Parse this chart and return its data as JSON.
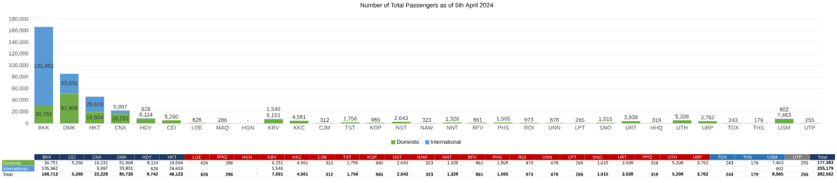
{
  "chart_data": [
    {
      "type": "bar",
      "title": "Number of Total Passengers as of 5th April 2024",
      "stacked": true,
      "grid": "y",
      "legend": "bottom",
      "categories": [
        "BKK",
        "DMK",
        "HKT",
        "CNX",
        "HDY",
        "CEI",
        "LOE",
        "MAQ",
        "HGN",
        "KBV",
        "KKC",
        "CJM",
        "TST",
        "KOP",
        "NST",
        "NAW",
        "NNT",
        "BFV",
        "PHS",
        "ROI",
        "UNN",
        "LPT",
        "SNO",
        "URT",
        "HHQ",
        "UTH",
        "UBP",
        "TDX",
        "THS",
        "USM",
        "UTP"
      ],
      "ylim": [
        0,
        180000
      ],
      "yticks": [
        {
          "value": 0,
          "label": "0"
        },
        {
          "value": 20000,
          "label": "20,000"
        },
        {
          "value": 40000,
          "label": "40,000"
        },
        {
          "value": 60000,
          "label": "60,000"
        },
        {
          "value": 80000,
          "label": "80,000"
        },
        {
          "value": 100000,
          "label": "100,000"
        },
        {
          "value": 120000,
          "label": "120,000"
        },
        {
          "value": 140000,
          "label": "140,000"
        },
        {
          "value": 160000,
          "label": "160,000"
        },
        {
          "value": 180000,
          "label": "180,000"
        }
      ],
      "series": [
        {
          "name": "Domestic",
          "color": "#70ad47",
          "values": [
            30751,
            51908,
            19504,
            16231,
            8114,
            5260,
            626,
            286,
            0,
            6151,
            4561,
            312,
            1756,
            965,
            2643,
            323,
            1328,
            861,
            1505,
            973,
            678,
            265,
            1015,
            3938,
            319,
            5208,
            3762,
            243,
            179,
            7463,
            255
          ],
          "value_labels": [
            "30,751",
            "51,908",
            "19,504",
            "16,231",
            "8,114",
            "5,260",
            "626",
            "286",
            "-",
            "6,151",
            "4,561",
            "312",
            "1,756",
            "965",
            "2,643",
            "323",
            "1,328",
            "861",
            "1,505",
            "973",
            "678",
            "265",
            "1,015",
            "3,938",
            "319",
            "5,208",
            "3,762",
            "243",
            "179",
            "7,463",
            "255"
          ]
        },
        {
          "name": "International",
          "color": "#5b9bd5",
          "values": [
            135962,
            33831,
            26619,
            5997,
            628,
            0,
            0,
            0,
            0,
            1540,
            0,
            0,
            0,
            0,
            0,
            0,
            0,
            0,
            0,
            0,
            0,
            0,
            0,
            0,
            0,
            0,
            0,
            0,
            0,
            602,
            0
          ],
          "value_labels": [
            "135,962",
            "33,831",
            "26,619",
            "5,997",
            "628",
            null,
            null,
            null,
            null,
            "1,540",
            null,
            null,
            null,
            null,
            null,
            null,
            null,
            null,
            null,
            null,
            null,
            null,
            null,
            null,
            null,
            null,
            null,
            null,
            null,
            "602",
            null
          ]
        }
      ]
    },
    {
      "type": "other",
      "categories": [
        "BKK",
        "CEI",
        "CNX",
        "DMK",
        "HDY",
        "HKT",
        "LOE",
        "MAQ",
        "HGN",
        "KBV",
        "KKC",
        "CJM",
        "TST",
        "KOP",
        "NST",
        "NAW",
        "NNT",
        "BFV",
        "PHS",
        "ROI",
        "UNN",
        "LPT",
        "SNO",
        "URT",
        "HHQ",
        "UTH",
        "UBP",
        "TDX",
        "THS",
        "USM",
        "UTP",
        "Total"
      ],
      "colors": [
        "#1f3864",
        "#1f3864",
        "#1f3864",
        "#1f3864",
        "#1f3864",
        "#1f3864",
        "#c00000",
        "#c00000",
        "#c00000",
        "#c00000",
        "#c00000",
        "#c00000",
        "#c00000",
        "#c00000",
        "#c00000",
        "#c00000",
        "#c00000",
        "#c00000",
        "#c00000",
        "#c00000",
        "#c00000",
        "#c00000",
        "#c00000",
        "#c00000",
        "#c00000",
        "#c00000",
        "#c00000",
        "#2e75b6",
        "#2e75b6",
        "#2e75b6",
        "#808080",
        "#1f3864"
      ],
      "series": [
        {
          "name": "Domestic",
          "values": [
            30751,
            5260,
            16231,
            51908,
            8114,
            19504,
            626,
            286,
            null,
            6151,
            4561,
            312,
            1756,
            965,
            2643,
            323,
            1328,
            861,
            1505,
            973,
            678,
            265,
            1015,
            3938,
            319,
            5208,
            3762,
            243,
            179,
            7463,
            255,
            177383
          ],
          "value_labels": [
            "30,751",
            "5,260",
            "16,231",
            "51,908",
            "8,114",
            "19,504",
            "626",
            "286",
            "-",
            "6,151",
            "4,561",
            "312",
            "1,756",
            "965",
            "2,643",
            "323",
            "1,328",
            "861",
            "1,505",
            "973",
            "678",
            "265",
            "1,015",
            "3,938",
            "319",
            "5,208",
            "3,762",
            "243",
            "179",
            "7,463",
            "255",
            "177,383"
          ]
        },
        {
          "name": "International",
          "values": [
            135962,
            null,
            5997,
            33831,
            628,
            26619,
            null,
            null,
            null,
            1540,
            null,
            null,
            null,
            null,
            null,
            null,
            null,
            null,
            null,
            null,
            null,
            null,
            null,
            null,
            null,
            null,
            null,
            null,
            null,
            602,
            null,
            205179
          ],
          "value_labels": [
            "135,962",
            "-",
            "5,997",
            "33,831",
            "628",
            "26,619",
            "-",
            "-",
            "-",
            "1,540",
            "-",
            "-",
            "-",
            "-",
            "-",
            "-",
            "-",
            "-",
            "-",
            "-",
            "-",
            "-",
            "-",
            "-",
            "-",
            "-",
            "-",
            "-",
            "-",
            "602",
            "-",
            "205,179"
          ]
        },
        {
          "name": "Total",
          "values": [
            166713,
            5260,
            22228,
            85739,
            8742,
            46123,
            626,
            286,
            null,
            7691,
            4561,
            312,
            1756,
            965,
            2643,
            323,
            1328,
            861,
            1505,
            973,
            678,
            265,
            1015,
            3938,
            319,
            5208,
            3762,
            243,
            179,
            8065,
            255,
            382562
          ],
          "value_labels": [
            "166,713",
            "5,260",
            "22,228",
            "85,739",
            "8,742",
            "46,123",
            "626",
            "286",
            "-",
            "7,691",
            "4,561",
            "312",
            "1,756",
            "965",
            "2,643",
            "323",
            "1,328",
            "861",
            "1,505",
            "973",
            "678",
            "265",
            "1,015",
            "3,938",
            "319",
            "5,208",
            "3,762",
            "243",
            "179",
            "8,065",
            "255",
            "382,562"
          ]
        }
      ]
    }
  ]
}
